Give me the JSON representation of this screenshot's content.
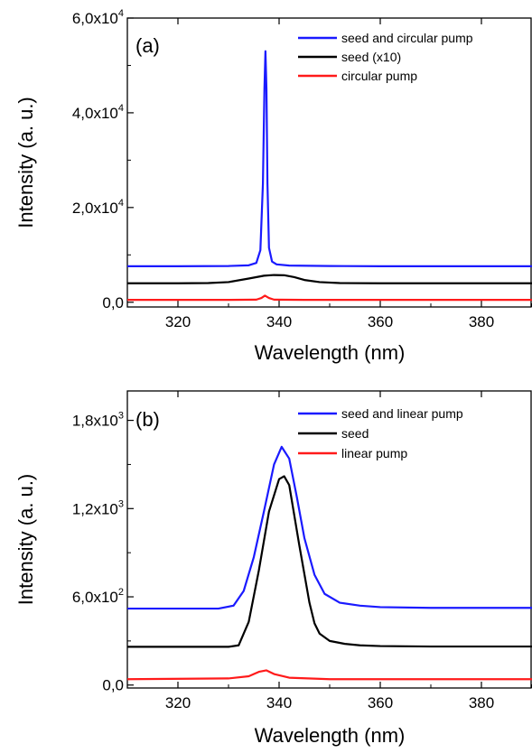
{
  "chart_data": [
    {
      "type": "line",
      "panel_label": "(a)",
      "xlabel": "Wavelength (nm)",
      "ylabel": "Intensity (a. u.)",
      "xlim": [
        310,
        390
      ],
      "ylim": [
        -1000,
        60000
      ],
      "x_ticks": [
        320,
        340,
        360,
        380
      ],
      "x_tick_labels": [
        "320",
        "340",
        "360",
        "380"
      ],
      "y_ticks": [
        0,
        20000,
        40000,
        60000
      ],
      "y_tick_labels": [
        {
          "mantissa": "0,0",
          "exp": ""
        },
        {
          "mantissa": "2,0x10",
          "exp": "4"
        },
        {
          "mantissa": "4,0x10",
          "exp": "4"
        },
        {
          "mantissa": "6,0x10",
          "exp": "4"
        }
      ],
      "legend_position": "top-right",
      "grid": false,
      "series": [
        {
          "name": "seed and circular pump",
          "color": "#1a1aff",
          "x": [
            310,
            320,
            330,
            334,
            335.5,
            336.3,
            336.8,
            337.1,
            337.3,
            337.5,
            337.7,
            338.0,
            338.6,
            339.5,
            342,
            350,
            360,
            370,
            380,
            390
          ],
          "y": [
            7600,
            7600,
            7650,
            7800,
            8300,
            11000,
            25000,
            45000,
            53000,
            45000,
            25000,
            11500,
            8600,
            8000,
            7750,
            7650,
            7600,
            7600,
            7600,
            7600
          ]
        },
        {
          "name": "seed (x10)",
          "color": "#000000",
          "x": [
            310,
            320,
            326,
            330,
            334,
            337,
            339,
            341,
            343,
            345,
            348,
            352,
            360,
            370,
            380,
            390
          ],
          "y": [
            4000,
            4000,
            4050,
            4250,
            5000,
            5600,
            5750,
            5700,
            5300,
            4700,
            4250,
            4050,
            4000,
            4000,
            4000,
            4000
          ]
        },
        {
          "name": "circular pump",
          "color": "#ff1a1a",
          "x": [
            310,
            330,
            335.5,
            336.5,
            337.2,
            338.0,
            339,
            345,
            360,
            390
          ],
          "y": [
            500,
            500,
            550,
            900,
            1400,
            900,
            550,
            500,
            500,
            500
          ]
        }
      ]
    },
    {
      "type": "line",
      "panel_label": "(b)",
      "xlabel": "Wavelength (nm)",
      "ylabel": "Intensity (a. u.)",
      "xlim": [
        310,
        390
      ],
      "ylim": [
        -20,
        2000
      ],
      "x_ticks": [
        320,
        340,
        360,
        380
      ],
      "x_tick_labels": [
        "320",
        "340",
        "360",
        "380"
      ],
      "y_ticks": [
        0,
        600,
        1200,
        1800
      ],
      "y_tick_labels": [
        {
          "mantissa": "0,0",
          "exp": ""
        },
        {
          "mantissa": "6,0x10",
          "exp": "2"
        },
        {
          "mantissa": "1,2x10",
          "exp": "3"
        },
        {
          "mantissa": "1,8x10",
          "exp": "3"
        }
      ],
      "legend_position": "top-right",
      "grid": false,
      "series": [
        {
          "name": "seed and linear pump",
          "color": "#1a1aff",
          "x": [
            310,
            320,
            328,
            331,
            333,
            335,
            337,
            339,
            340.5,
            342,
            343.5,
            345,
            347,
            349,
            352,
            356,
            360,
            370,
            380,
            390
          ],
          "y": [
            520,
            520,
            520,
            540,
            640,
            870,
            1180,
            1500,
            1620,
            1540,
            1280,
            1000,
            750,
            620,
            560,
            540,
            530,
            525,
            525,
            525
          ]
        },
        {
          "name": "seed",
          "color": "#000000",
          "x": [
            310,
            320,
            330,
            332,
            334,
            336,
            338,
            340,
            341,
            342,
            344,
            346,
            347,
            348,
            350,
            353,
            356,
            360,
            370,
            380,
            390
          ],
          "y": [
            260,
            260,
            260,
            270,
            430,
            780,
            1180,
            1400,
            1420,
            1360,
            950,
            560,
            420,
            350,
            300,
            280,
            270,
            265,
            262,
            262,
            262
          ]
        },
        {
          "name": "linear pump",
          "color": "#ff1a1a",
          "x": [
            310,
            330,
            334,
            336,
            337.5,
            339,
            342,
            350,
            370,
            390
          ],
          "y": [
            40,
            45,
            60,
            90,
            100,
            75,
            50,
            40,
            40,
            40
          ]
        }
      ]
    }
  ]
}
